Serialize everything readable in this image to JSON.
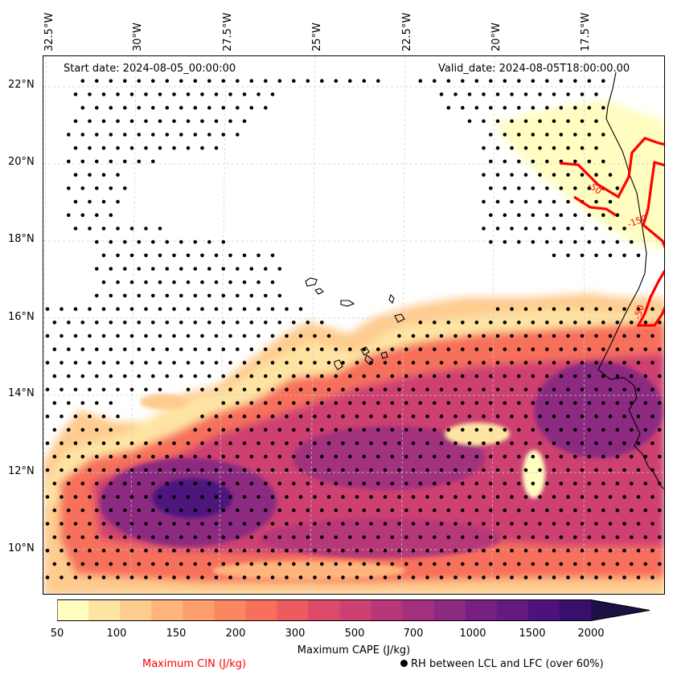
{
  "map": {
    "start_date": "Start date: 2024-08-05_00:00:00",
    "valid_date": "Valid_date: 2024-08-05T18:00:00.00",
    "longitude_labels": [
      "32.5°W",
      "30°W",
      "27.5°W",
      "25°W",
      "22.5°W",
      "20°W",
      "17.5°W"
    ],
    "latitude_labels": [
      "22°N",
      "20°N",
      "18°N",
      "16°N",
      "14°N",
      "12°N",
      "10°N"
    ],
    "cin_contour_labels": [
      "-50",
      "-150",
      "-50"
    ],
    "colors": {
      "cin_contour": "#ff0000",
      "coastline": "#000000",
      "stipple": "#000000",
      "gridline": "#cccccc"
    }
  },
  "colorbar": {
    "title": "Maximum CAPE (J/kg)",
    "ticks": [
      "50",
      "100",
      "150",
      "200",
      "300",
      "500",
      "700",
      "1000",
      "1500",
      "2000"
    ],
    "colors": [
      "#fffdbf",
      "#fee4a3",
      "#fecc8f",
      "#feb47b",
      "#fe9e6c",
      "#fb8761",
      "#f7705c",
      "#ed5a5f",
      "#dd4a69",
      "#cd4071",
      "#b73779",
      "#a3307e",
      "#8c2981",
      "#761f81",
      "#641a80",
      "#4e127c",
      "#390f6e",
      "#1c1044"
    ]
  },
  "legend": {
    "cin_label": "Maximum CIN (J/kg)",
    "rh_label": "RH between LCL and LFC (over 60%)"
  }
}
